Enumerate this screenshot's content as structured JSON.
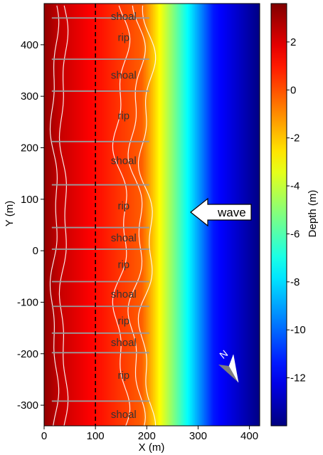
{
  "chart_data": {
    "type": "heatmap",
    "xlabel": "X (m)",
    "ylabel": "Y (m)",
    "xlim": [
      0,
      420
    ],
    "ylim": [
      -340,
      480
    ],
    "x_ticks": [
      0,
      100,
      200,
      300,
      400
    ],
    "y_ticks": [
      400,
      300,
      200,
      100,
      0,
      -100,
      -200,
      -300
    ],
    "colorbar": {
      "label": "Depth (m)",
      "range": [
        -14,
        3.6
      ],
      "ticks": [
        2,
        0,
        -2,
        -4,
        -6,
        -8,
        -10,
        -12
      ],
      "colormap": "jet"
    },
    "reference_line_x": 100,
    "transect_lines_y": [
      452,
      372,
      310,
      212,
      128,
      45,
      3,
      -60,
      -108,
      -160,
      -198,
      -292
    ],
    "regions": [
      {
        "label": "shoal",
        "y": 455
      },
      {
        "label": "rip",
        "y": 414
      },
      {
        "label": "shoal",
        "y": 341
      },
      {
        "label": "rip",
        "y": 262
      },
      {
        "label": "shoal",
        "y": 175
      },
      {
        "label": "rip",
        "y": 87
      },
      {
        "label": "shoal",
        "y": 25
      },
      {
        "label": "rip",
        "y": -27
      },
      {
        "label": "shoal",
        "y": -84
      },
      {
        "label": "rip",
        "y": -136
      },
      {
        "label": "shoal",
        "y": -178
      },
      {
        "label": "rip",
        "y": -242
      },
      {
        "label": "shoal",
        "y": -318
      }
    ],
    "annotations": {
      "wave_label": "wave",
      "north_label": "N"
    }
  }
}
